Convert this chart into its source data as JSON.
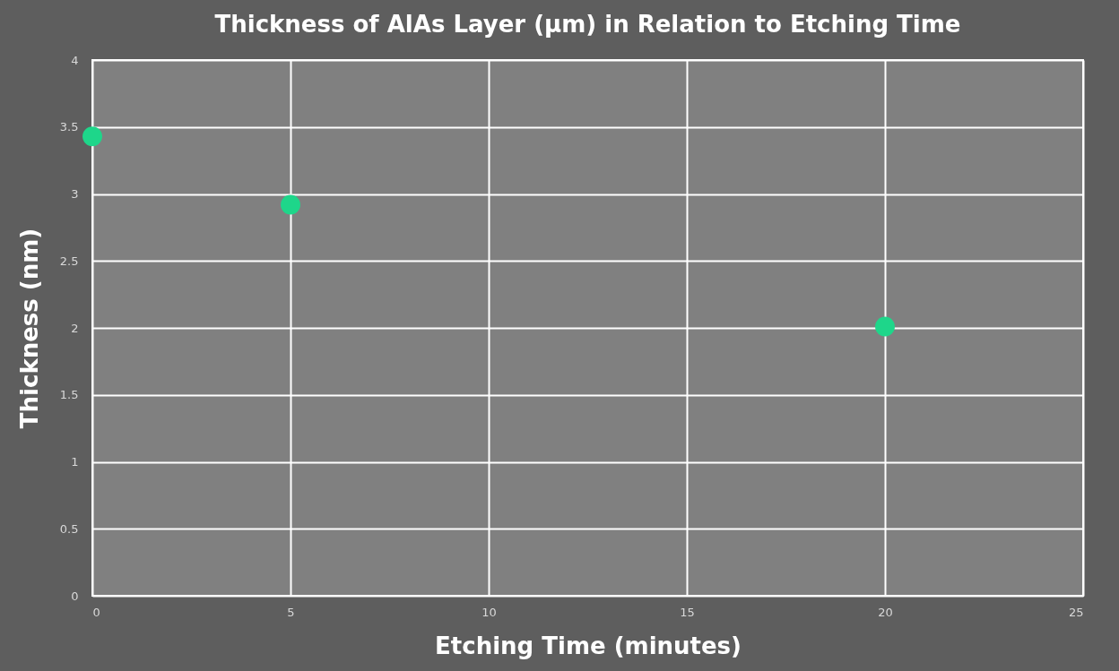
{
  "chart_data": {
    "type": "scatter",
    "title": "Thickness of AlAs Layer (µm) in Relation to Etching Time",
    "xlabel": "Etching Time (minutes)",
    "ylabel": "Thickness (nm)",
    "x": [
      0,
      5,
      20
    ],
    "series": [
      {
        "color": "#1ed68a",
        "values": [
          3.43,
          2.92,
          2.01
        ]
      }
    ],
    "xlim": [
      0,
      25
    ],
    "xticks": [
      0,
      5,
      10,
      15,
      20,
      25
    ],
    "ylim": [
      0,
      4
    ],
    "yticks": [
      0,
      0.5,
      1,
      1.5,
      2,
      2.5,
      3,
      3.5,
      4
    ],
    "grid": true,
    "marker": "circle"
  }
}
